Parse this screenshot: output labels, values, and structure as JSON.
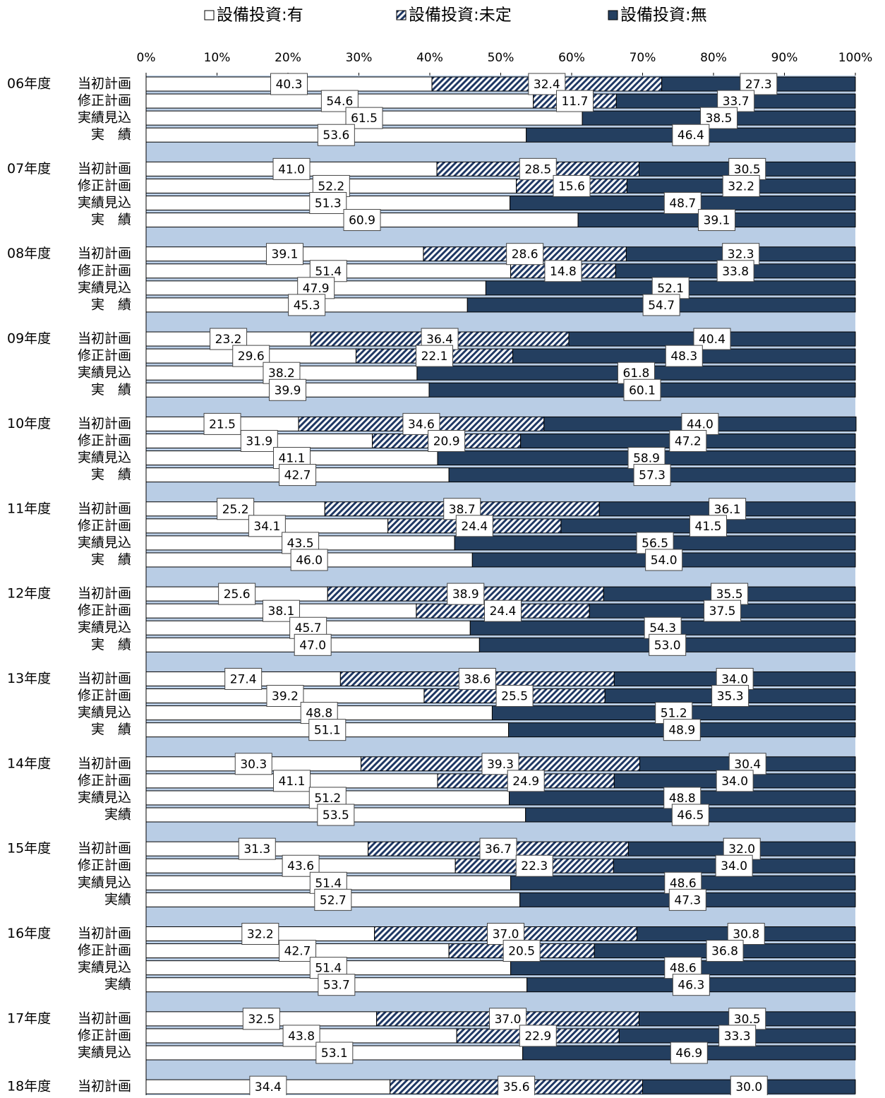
{
  "chart_data": {
    "type": "stacked-barh",
    "legend_position": "top",
    "plot_background": "#b9cde5",
    "xlim": [
      0,
      100
    ],
    "xticks": [
      {
        "value": 0,
        "label": "0%"
      },
      {
        "value": 10,
        "label": "10%"
      },
      {
        "value": 20,
        "label": "20%"
      },
      {
        "value": 30,
        "label": "30%"
      },
      {
        "value": 40,
        "label": "40%"
      },
      {
        "value": 50,
        "label": "50%"
      },
      {
        "value": 60,
        "label": "60%"
      },
      {
        "value": 70,
        "label": "70%"
      },
      {
        "value": 80,
        "label": "80%"
      },
      {
        "value": 90,
        "label": "90%"
      },
      {
        "value": 100,
        "label": "100%"
      }
    ],
    "category_groups": [
      "06年度",
      null,
      null,
      null,
      "07年度",
      null,
      null,
      null,
      "08年度",
      null,
      null,
      null,
      "09年度",
      null,
      null,
      null,
      "10年度",
      null,
      null,
      null,
      "11年度",
      null,
      null,
      null,
      "12年度",
      null,
      null,
      null,
      "13年度",
      null,
      null,
      null,
      "14年度",
      null,
      null,
      null,
      "15年度",
      null,
      null,
      null,
      "16年度",
      null,
      null,
      null,
      "17年度",
      null,
      null,
      "18年度"
    ],
    "categories": [
      "当初計画",
      "修正計画",
      "実績見込",
      "実　績",
      "当初計画",
      "修正計画",
      "実績見込",
      "実　績",
      "当初計画",
      "修正計画",
      "実績見込",
      "実　績",
      "当初計画",
      "修正計画",
      "実績見込",
      "実　績",
      "当初計画",
      "修正計画",
      "実績見込",
      "実　績",
      "当初計画",
      "修正計画",
      "実績見込",
      "実　績",
      "当初計画",
      "修正計画",
      "実績見込",
      "実　績",
      "当初計画",
      "修正計画",
      "実績見込",
      "実　績",
      "当初計画",
      "修正計画",
      "実績見込",
      "実績",
      "当初計画",
      "修正計画",
      "実績見込",
      "実績",
      "当初計画",
      "修正計画",
      "実績見込",
      "実績",
      "当初計画",
      "修正計画",
      "実績見込",
      "当初計画"
    ],
    "series": [
      {
        "name": "設備投資:有",
        "color": "#ffffff",
        "hatch": false,
        "values": [
          40.3,
          54.6,
          61.5,
          53.6,
          41.0,
          52.2,
          51.3,
          60.9,
          39.1,
          51.4,
          47.9,
          45.3,
          23.2,
          29.6,
          38.2,
          39.9,
          21.5,
          31.9,
          41.1,
          42.7,
          25.2,
          34.1,
          43.5,
          46.0,
          25.6,
          38.1,
          45.7,
          47.0,
          27.4,
          39.2,
          48.8,
          51.1,
          30.3,
          41.1,
          51.2,
          53.5,
          31.3,
          43.6,
          51.4,
          52.7,
          32.2,
          42.7,
          51.4,
          53.7,
          32.5,
          43.8,
          53.1,
          34.4
        ],
        "value_labels": [
          "40.3",
          "54.6",
          "61.5",
          "53.6",
          "41.0",
          "52.2",
          "51.3",
          "60.9",
          "39.1",
          "51.4",
          "47.9",
          "45.3",
          "23.2",
          "29.6",
          "38.2",
          "39.9",
          "21.5",
          "31.9",
          "41.1",
          "42.7",
          "25.2",
          "34.1",
          "43.5",
          "46.0",
          "25.6",
          "38.1",
          "45.7",
          "47.0",
          "27.4",
          "39.2",
          "48.8",
          "51.1",
          "30.3",
          "41.1",
          "51.2",
          "53.5",
          "31.3",
          "43.6",
          "51.4",
          "52.7",
          "32.2",
          "42.7",
          "51.4",
          "53.7",
          "32.5",
          "43.8",
          "53.1",
          "34.4"
        ]
      },
      {
        "name": "設備投資:未定",
        "color": "#1f3864",
        "hatch": true,
        "values": [
          32.4,
          11.7,
          null,
          null,
          28.5,
          15.6,
          null,
          null,
          28.6,
          14.8,
          null,
          null,
          36.4,
          22.1,
          null,
          null,
          34.6,
          20.9,
          null,
          null,
          38.7,
          24.4,
          null,
          null,
          38.9,
          24.4,
          null,
          null,
          38.6,
          25.5,
          null,
          null,
          39.3,
          24.9,
          null,
          null,
          36.7,
          22.3,
          null,
          null,
          37.0,
          20.5,
          null,
          null,
          37.0,
          22.9,
          null,
          35.6
        ],
        "value_labels": [
          "32.4",
          "11.7",
          null,
          null,
          "28.5",
          "15.6",
          null,
          null,
          "28.6",
          "14.8",
          null,
          null,
          "36.4",
          "22.1",
          null,
          null,
          "34.6",
          "20.9",
          null,
          null,
          "38.7",
          "24.4",
          null,
          null,
          "38.9",
          "24.4",
          null,
          null,
          "38.6",
          "25.5",
          null,
          null,
          "39.3",
          "24.9",
          null,
          null,
          "36.7",
          "22.3",
          null,
          null,
          "37.0",
          "20.5",
          null,
          null,
          "37.0",
          "22.9",
          null,
          "35.6"
        ]
      },
      {
        "name": "設備投資:無",
        "color": "#243f60",
        "hatch": false,
        "values": [
          27.3,
          33.7,
          38.5,
          46.4,
          30.5,
          32.2,
          48.7,
          39.1,
          32.3,
          33.8,
          52.1,
          54.7,
          40.4,
          48.3,
          61.8,
          60.1,
          44.0,
          47.2,
          58.9,
          57.3,
          36.1,
          41.5,
          56.5,
          54.0,
          35.5,
          37.5,
          54.3,
          53.0,
          34.0,
          35.3,
          51.2,
          48.9,
          30.4,
          34.0,
          48.8,
          46.5,
          32.0,
          34.0,
          48.6,
          47.3,
          30.8,
          36.8,
          48.6,
          46.3,
          30.5,
          33.3,
          46.9,
          30.0
        ],
        "value_labels": [
          "27.3",
          "33.7",
          "38.5",
          "46.4",
          "30.5",
          "32.2",
          "48.7",
          "39.1",
          "32.3",
          "33.8",
          "52.1",
          "54.7",
          "40.4",
          "48.3",
          "61.8",
          "60.1",
          "44.0",
          "47.2",
          "58.9",
          "57.3",
          "36.1",
          "41.5",
          "56.5",
          "54.0",
          "35.5",
          "37.5",
          "54.3",
          "53.0",
          "34.0",
          "35.3",
          "51.2",
          "48.9",
          "30.4",
          "34.0",
          "48.8",
          "46.5",
          "32.0",
          "34.0",
          "48.6",
          "47.3",
          "30.8",
          "36.8",
          "48.6",
          "46.3",
          "30.5",
          "33.3",
          "46.9",
          "30.0"
        ]
      }
    ]
  }
}
